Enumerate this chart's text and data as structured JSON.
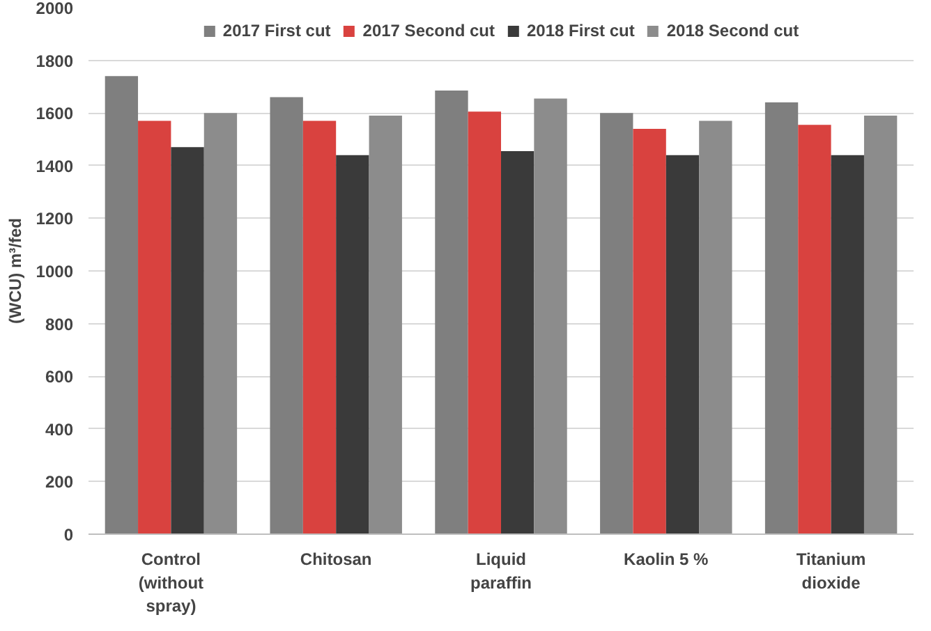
{
  "chart_data": {
    "type": "bar",
    "ylabel": "(WCU) m³/fed",
    "categories": [
      "Control\n(without\nspray)",
      "Chitosan",
      "Liquid\nparaffin",
      "Kaolin 5 %",
      "Titanium\ndioxide"
    ],
    "series": [
      {
        "name": "2017 First cut",
        "color": "#7f7f7f",
        "values": [
          1740,
          1660,
          1685,
          1600,
          1640
        ]
      },
      {
        "name": "2017 Second cut",
        "color": "#d9423f",
        "values": [
          1570,
          1570,
          1605,
          1540,
          1555
        ]
      },
      {
        "name": "2018 First cut",
        "color": "#3a3a3a",
        "values": [
          1470,
          1440,
          1455,
          1440,
          1440
        ]
      },
      {
        "name": "2018 Second cut",
        "color": "#8c8c8c",
        "values": [
          1600,
          1590,
          1655,
          1570,
          1590
        ]
      }
    ],
    "ylim": [
      0,
      2000
    ],
    "yticks": [
      0,
      200,
      400,
      600,
      800,
      1000,
      1200,
      1400,
      1600,
      1800,
      2000
    ],
    "grid": "y",
    "legend": "top"
  }
}
